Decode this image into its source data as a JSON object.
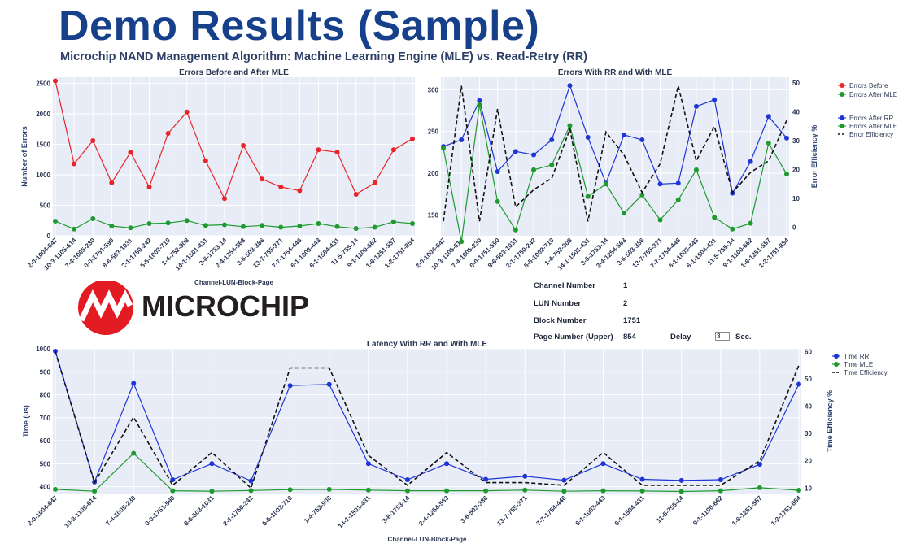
{
  "header": {
    "title": "Demo Results (Sample)",
    "subtitle": "Microchip NAND Management Algorithm: Machine Learning Engine (MLE) vs. Read-Retry (RR)"
  },
  "logo": {
    "text": "MICROCHIP",
    "color": "#e31b23"
  },
  "params": {
    "channel_label": "Channel Number",
    "channel_value": "1",
    "lun_label": "LUN Number",
    "lun_value": "2",
    "block_label": "Block Number",
    "block_value": "1751",
    "page_label": "Page Number (Upper)",
    "page_value": "854",
    "delay_label": "Delay",
    "delay_value": "3",
    "delay_unit": "Sec."
  },
  "chart_data": [
    {
      "type": "line",
      "title": "Errors Before and After MLE",
      "xlabel": "Channel-LUN-Block-Page",
      "ylabel": "Number of Errors",
      "ylim": [
        0,
        2600
      ],
      "yticks": [
        0,
        500,
        1000,
        1500,
        2000,
        2500
      ],
      "categories": [
        "2-0-1004-647",
        "10-3-1105-614",
        "7-4-1005-230",
        "0-0-1751-590",
        "8-6-503-1031",
        "2-1-1750-242",
        "5-5-1002-710",
        "1-4-752-908",
        "14-1-1501-431",
        "3-6-1753-14",
        "2-4-1254-563",
        "3-6-503-386",
        "13-7-755-371",
        "7-7-1754-446",
        "6-1-1003-443",
        "6-1-1504-431",
        "11-5-755-14",
        "9-1-1100-662",
        "1-6-1251-557",
        "1-2-1751-854"
      ],
      "series": [
        {
          "name": "Errors Before",
          "color": "#e8262a",
          "values": [
            2540,
            1180,
            1560,
            870,
            1370,
            800,
            1680,
            2030,
            1230,
            610,
            1480,
            930,
            800,
            740,
            1410,
            1370,
            680,
            870,
            1410,
            1590
          ]
        },
        {
          "name": "Errors After MLE",
          "color": "#1f9a2f",
          "values": [
            240,
            110,
            280,
            160,
            130,
            200,
            210,
            250,
            170,
            180,
            150,
            170,
            140,
            160,
            200,
            150,
            120,
            140,
            230,
            200
          ]
        }
      ],
      "grid": true,
      "legend": "right"
    },
    {
      "type": "line",
      "title": "Errors With RR and With MLE",
      "ylim": [
        125,
        315
      ],
      "yticks": [
        150,
        200,
        250,
        300
      ],
      "y2label": "Error Efficiency %",
      "y2lim": [
        -3,
        52
      ],
      "y2ticks": [
        0,
        10,
        20,
        30,
        40,
        50
      ],
      "categories": [
        "2-0-1004-647",
        "10-3-1105-614",
        "7-4-1005-230",
        "0-0-1751-590",
        "8-6-503-1031",
        "2-1-1750-242",
        "5-5-1002-710",
        "1-4-752-908",
        "14-1-1501-431",
        "3-6-1753-14",
        "2-4-1254-563",
        "3-6-503-386",
        "13-7-755-371",
        "7-7-1754-446",
        "6-1-1003-443",
        "6-1-1504-431",
        "11-5-755-14",
        "9-1-1100-662",
        "1-6-1251-557",
        "1-2-1751-854"
      ],
      "series": [
        {
          "name": "Errors After RR",
          "color": "#1f35d6",
          "values": [
            232,
            240,
            287,
            202,
            226,
            222,
            240,
            305,
            243,
            188,
            246,
            240,
            187,
            188,
            280,
            288,
            176,
            214,
            268,
            242
          ]
        },
        {
          "name": "Errors After MLE",
          "color": "#1f9a2f",
          "values": [
            230,
            118,
            282,
            166,
            132,
            204,
            210,
            257,
            172,
            187,
            152,
            174,
            144,
            168,
            204,
            147,
            133,
            140,
            236,
            199
          ]
        },
        {
          "name": "Error Efficiency",
          "axis": "y2",
          "dash": true,
          "color": "#111111",
          "values": [
            2,
            49,
            2,
            41,
            7,
            13,
            17,
            34,
            2,
            33,
            25,
            12,
            22,
            49,
            23,
            35,
            12,
            19,
            23,
            37
          ]
        }
      ],
      "grid": true,
      "legend": "top-right"
    },
    {
      "type": "line",
      "title": "Latency With RR and With MLE",
      "xlabel": "Channel-LUN-Block-Page",
      "ylabel": "Time (us)",
      "ylim": [
        370,
        1000
      ],
      "yticks": [
        400,
        500,
        600,
        700,
        800,
        900,
        1000
      ],
      "y2label": "Time Efficiency %",
      "y2lim": [
        8,
        61
      ],
      "y2ticks": [
        10,
        20,
        30,
        40,
        50,
        60
      ],
      "categories": [
        "2-0-1004-647",
        "10-3-1105-614",
        "7-4-1005-230",
        "0-0-1751-590",
        "8-6-503-1031",
        "2-1-1750-242",
        "5-5-1002-710",
        "1-4-752-908",
        "14-1-1501-431",
        "3-6-1753-14",
        "2-4-1254-563",
        "3-6-503-386",
        "13-7-755-371",
        "7-7-1754-446",
        "6-1-1003-443",
        "6-1-1504-431",
        "11-5-755-14",
        "9-1-1100-662",
        "1-6-1251-557",
        "1-2-1751-854"
      ],
      "series": [
        {
          "name": "Time RR",
          "color": "#1f35d6",
          "values": [
            990,
            420,
            850,
            430,
            500,
            425,
            840,
            845,
            500,
            430,
            500,
            432,
            445,
            428,
            500,
            432,
            427,
            430,
            497,
            846
          ]
        },
        {
          "name": "Time MLE",
          "color": "#1f9a2f",
          "values": [
            388,
            380,
            545,
            382,
            380,
            383,
            387,
            388,
            385,
            382,
            382,
            382,
            385,
            380,
            382,
            381,
            379,
            382,
            395,
            384
          ]
        },
        {
          "name": "Time Efficiency",
          "axis": "y2",
          "dash": true,
          "color": "#111111",
          "values": [
            60,
            12,
            36,
            11,
            23,
            10,
            54,
            54,
            22,
            11,
            23,
            12,
            12,
            11,
            23,
            11,
            11,
            11,
            20,
            55
          ]
        }
      ],
      "grid": true,
      "legend": "top-right"
    }
  ]
}
